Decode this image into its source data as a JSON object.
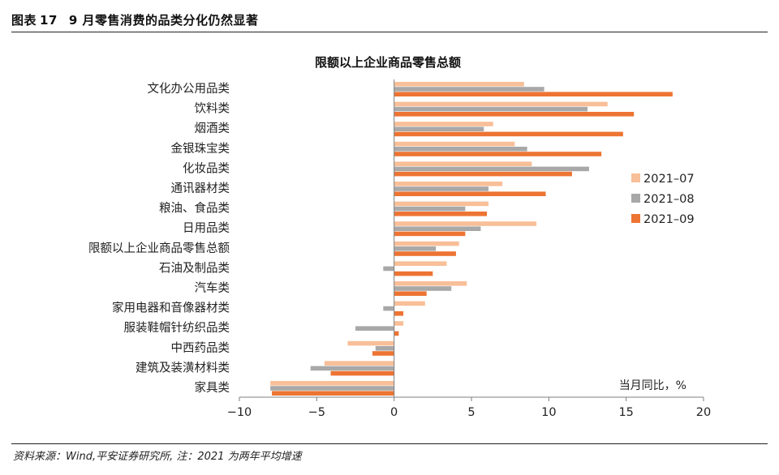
{
  "header": {
    "label": "图表",
    "number": "17",
    "title": "9 月零售消费的品类分化仍然显著"
  },
  "footer": {
    "source": "资料来源：Wind,平安证券研究所, 注：2021 为两年平均增速"
  },
  "colors": {
    "2021-07": "#f8bf98",
    "2021-08": "#a8a8a8",
    "2021-09": "#ed7433",
    "axis": "#7f7f7f"
  },
  "chart_data": {
    "type": "bar",
    "orientation": "horizontal",
    "title": "限额以上企业商品零售总额",
    "axis_note": "当月同比，%",
    "xlim": [
      -10,
      20
    ],
    "xticks": [
      -10,
      -5,
      0,
      5,
      10,
      15,
      20
    ],
    "xtick_labels": [
      "−10",
      "−5",
      "0",
      "5",
      "10",
      "15",
      "20"
    ],
    "legend_position": "right",
    "categories": [
      "文化办公用品类",
      "饮料类",
      "烟酒类",
      "金银珠宝类",
      "化妆品类",
      "通讯器材类",
      "粮油、食品类",
      "日用品类",
      "限额以上企业商品零售总额",
      "石油及制品类",
      "汽车类",
      "家用电器和音像器材类",
      "服装鞋帽针纺织品类",
      "中西药品类",
      "建筑及装潢材料类",
      "家具类"
    ],
    "series": [
      {
        "name": "2021–07",
        "values": [
          8.4,
          13.8,
          6.4,
          7.8,
          8.9,
          7.0,
          6.1,
          9.2,
          4.2,
          3.4,
          4.7,
          2.0,
          0.6,
          -3.0,
          -4.5,
          -8.0
        ]
      },
      {
        "name": "2021–08",
        "values": [
          9.7,
          12.5,
          5.8,
          8.6,
          12.6,
          6.1,
          4.6,
          5.6,
          2.7,
          -0.7,
          3.7,
          -0.7,
          -2.5,
          -1.2,
          -5.4,
          -8.0
        ]
      },
      {
        "name": "2021–09",
        "values": [
          18.0,
          15.5,
          14.8,
          13.4,
          11.5,
          9.8,
          6.0,
          4.6,
          4.0,
          2.5,
          2.1,
          0.6,
          0.3,
          -1.4,
          -4.1,
          -7.9
        ]
      }
    ]
  }
}
